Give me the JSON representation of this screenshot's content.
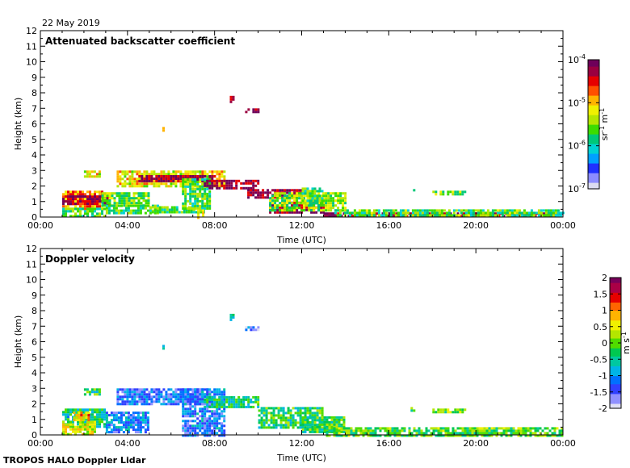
{
  "date": "22 May 2019",
  "footer": "TROPOS HALO Doppler Lidar",
  "colors": {
    "backscatter": [
      "#dcdcf0",
      "#8c8cff",
      "#2030ff",
      "#00a0ff",
      "#00d2d2",
      "#00c878",
      "#3cdc00",
      "#b4e600",
      "#f0f000",
      "#ffb400",
      "#ff5000",
      "#e60000",
      "#9a0040",
      "#6e005a"
    ],
    "velocity": [
      "#e0e0f4",
      "#9090ff",
      "#3040ff",
      "#0070ff",
      "#00b4e6",
      "#00c8a0",
      "#00c850",
      "#50dc00",
      "#b4e600",
      "#f0f000",
      "#ffb400",
      "#ff6400",
      "#e60000",
      "#aa0046",
      "#78005a"
    ]
  },
  "chart_data": [
    {
      "type": "heatmap",
      "title": "Attenuated backscatter coefficient",
      "xlabel": "Time (UTC)",
      "ylabel": "Height (km)",
      "x_ticks": [
        "00:00",
        "04:00",
        "08:00",
        "12:00",
        "16:00",
        "20:00",
        "00:00"
      ],
      "y_ticks": [
        "0",
        "1",
        "2",
        "3",
        "4",
        "5",
        "6",
        "7",
        "8",
        "9",
        "10",
        "11",
        "12"
      ],
      "xlim": [
        0,
        24
      ],
      "ylim": [
        0,
        12
      ],
      "colorbar": {
        "label_parts": [
          "sr",
          "-1",
          " m",
          "-1"
        ],
        "scale": "log",
        "range": [
          1e-07,
          0.0001
        ],
        "ticks": [
          {
            "value": -4,
            "base": "10",
            "exp": "-4"
          },
          {
            "value": -5,
            "base": "10",
            "exp": "-5"
          },
          {
            "value": -6,
            "base": "10",
            "exp": "-6"
          },
          {
            "value": -7,
            "base": "10",
            "exp": "-7"
          }
        ]
      },
      "blobs": [
        {
          "t0": 1.0,
          "t1": 3.0,
          "h0": 0.6,
          "h1": 1.7,
          "c": 0.72
        },
        {
          "t0": 1.0,
          "t1": 3.2,
          "h0": 0.9,
          "h1": 1.4,
          "c": 0.95
        },
        {
          "t0": 1.0,
          "t1": 3.0,
          "h0": 0.1,
          "h1": 0.6,
          "c": 0.45
        },
        {
          "t0": 2.0,
          "t1": 2.7,
          "h0": 2.6,
          "h1": 3.0,
          "c": 0.62
        },
        {
          "t0": 2.8,
          "t1": 5.0,
          "h0": 0.8,
          "h1": 1.6,
          "c": 0.5
        },
        {
          "t0": 3.0,
          "t1": 5.5,
          "h0": 0.2,
          "h1": 0.8,
          "c": 0.42
        },
        {
          "t0": 3.5,
          "t1": 8.5,
          "h0": 2.0,
          "h1": 3.0,
          "c": 0.62
        },
        {
          "t0": 4.5,
          "t1": 8.0,
          "h0": 2.3,
          "h1": 2.7,
          "c": 0.95
        },
        {
          "t0": 5.0,
          "t1": 7.5,
          "h0": 0.3,
          "h1": 0.7,
          "c": 0.42
        },
        {
          "t0": 6.5,
          "t1": 7.8,
          "h0": 0.5,
          "h1": 2.5,
          "c": 0.45
        },
        {
          "t0": 7.5,
          "t1": 10.0,
          "h0": 1.9,
          "h1": 2.4,
          "c": 0.95
        },
        {
          "t0": 9.5,
          "t1": 12.0,
          "h0": 1.3,
          "h1": 1.8,
          "c": 0.95
        },
        {
          "t0": 10.5,
          "t1": 13.0,
          "h0": 0.3,
          "h1": 1.0,
          "c": 0.95
        },
        {
          "t0": 10.5,
          "t1": 14.0,
          "h0": 0.4,
          "h1": 1.6,
          "c": 0.5
        },
        {
          "t0": 12.0,
          "t1": 13.0,
          "h0": 0.9,
          "h1": 1.9,
          "c": 0.45
        },
        {
          "t0": 13.0,
          "t1": 24.0,
          "h0": 0.0,
          "h1": 0.3,
          "c": 0.92
        },
        {
          "t0": 13.5,
          "t1": 24.0,
          "h0": 0.1,
          "h1": 0.5,
          "c": 0.45
        },
        {
          "t0": 17.0,
          "t1": 17.2,
          "h0": 1.6,
          "h1": 1.8,
          "c": 0.45
        },
        {
          "t0": 18.0,
          "t1": 19.5,
          "h0": 1.4,
          "h1": 1.7,
          "c": 0.5
        },
        {
          "t0": 8.7,
          "t1": 8.9,
          "h0": 7.4,
          "h1": 7.8,
          "c": 0.88
        },
        {
          "t0": 9.4,
          "t1": 10.0,
          "h0": 6.8,
          "h1": 7.0,
          "c": 0.97
        },
        {
          "t0": 5.6,
          "t1": 5.7,
          "h0": 5.6,
          "h1": 5.8,
          "c": 0.8
        },
        {
          "t0": 7.2,
          "t1": 7.5,
          "h0": 0.0,
          "h1": 0.5,
          "c": 0.66
        }
      ]
    },
    {
      "type": "heatmap",
      "title": "Doppler velocity",
      "xlabel": "Time (UTC)",
      "ylabel": "Height (km)",
      "x_ticks": [
        "00:00",
        "04:00",
        "08:00",
        "12:00",
        "16:00",
        "20:00",
        "00:00"
      ],
      "y_ticks": [
        "0",
        "1",
        "2",
        "3",
        "4",
        "5",
        "6",
        "7",
        "8",
        "9",
        "10",
        "11",
        "12"
      ],
      "xlim": [
        0,
        24
      ],
      "ylim": [
        0,
        12
      ],
      "colorbar": {
        "label_parts": [
          "m s",
          "-1"
        ],
        "scale": "linear",
        "range": [
          -2,
          2
        ],
        "ticks": [
          {
            "value": 2,
            "base": "2"
          },
          {
            "value": 1.5,
            "base": "1.5"
          },
          {
            "value": 1,
            "base": "1"
          },
          {
            "value": 0.5,
            "base": "0.5"
          },
          {
            "value": 0,
            "base": "0"
          },
          {
            "value": -0.5,
            "base": "-0.5"
          },
          {
            "value": -1,
            "base": "-1"
          },
          {
            "value": -1.5,
            "base": "-1.5"
          },
          {
            "value": -2,
            "base": "-2"
          }
        ]
      },
      "blobs": [
        {
          "t0": 1.0,
          "t1": 3.0,
          "h0": 0.5,
          "h1": 1.7,
          "c": 0.38
        },
        {
          "t0": 1.0,
          "t1": 2.5,
          "h0": 0.1,
          "h1": 0.9,
          "c": 0.6
        },
        {
          "t0": 1.5,
          "t1": 2.2,
          "h0": 1.0,
          "h1": 1.5,
          "c": 0.7
        },
        {
          "t0": 2.0,
          "t1": 2.7,
          "h0": 2.6,
          "h1": 3.0,
          "c": 0.45
        },
        {
          "t0": 3.0,
          "t1": 5.0,
          "h0": 0.2,
          "h1": 1.5,
          "c": 0.22
        },
        {
          "t0": 3.5,
          "t1": 7.8,
          "h0": 2.0,
          "h1": 3.0,
          "c": 0.18
        },
        {
          "t0": 6.5,
          "t1": 8.5,
          "h0": 0.0,
          "h1": 3.0,
          "c": 0.2
        },
        {
          "t0": 7.5,
          "t1": 10.0,
          "h0": 1.8,
          "h1": 2.5,
          "c": 0.4
        },
        {
          "t0": 10.0,
          "t1": 13.0,
          "h0": 0.4,
          "h1": 1.8,
          "c": 0.42
        },
        {
          "t0": 12.0,
          "t1": 14.0,
          "h0": 0.2,
          "h1": 1.2,
          "c": 0.45
        },
        {
          "t0": 13.0,
          "t1": 24.0,
          "h0": 0.0,
          "h1": 0.5,
          "c": 0.48
        },
        {
          "t0": 17.0,
          "t1": 17.2,
          "h0": 1.6,
          "h1": 1.8,
          "c": 0.45
        },
        {
          "t0": 18.0,
          "t1": 19.5,
          "h0": 1.4,
          "h1": 1.7,
          "c": 0.5
        },
        {
          "t0": 8.7,
          "t1": 8.9,
          "h0": 7.4,
          "h1": 7.8,
          "c": 0.35
        },
        {
          "t0": 9.4,
          "t1": 10.0,
          "h0": 6.8,
          "h1": 7.0,
          "c": 0.12
        },
        {
          "t0": 5.6,
          "t1": 5.7,
          "h0": 5.6,
          "h1": 5.8,
          "c": 0.35
        }
      ]
    }
  ]
}
